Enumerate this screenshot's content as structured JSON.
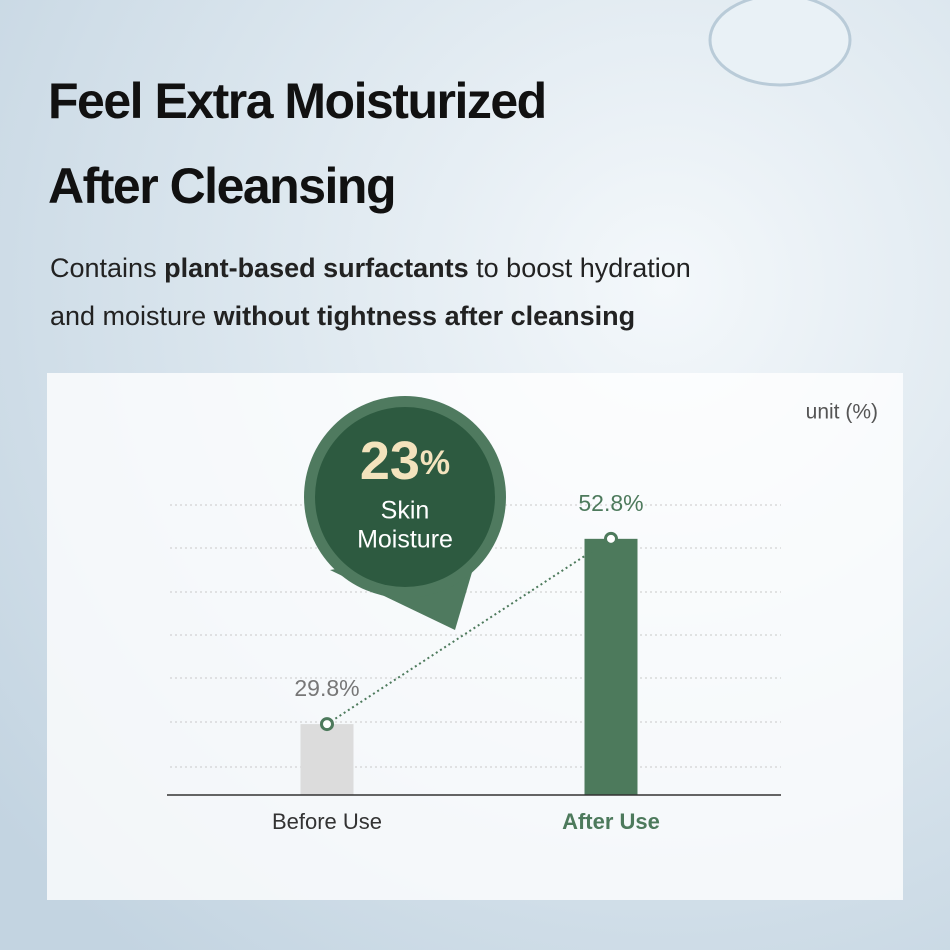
{
  "header": {
    "title": [
      "Feel Extra Moisturized",
      "After Cleansing"
    ],
    "subtitle": [
      [
        {
          "text": "Contains ",
          "bold": false
        },
        {
          "text": "plant-based surfactants",
          "bold": true
        },
        {
          "text": " to boost hydration",
          "bold": false
        }
      ],
      [
        {
          "text": "and moisture ",
          "bold": false
        },
        {
          "text": "without tightness after cleansing",
          "bold": true
        }
      ]
    ]
  },
  "chart_data": {
    "type": "bar",
    "unit_note": "unit (%)",
    "categories": [
      "Before Use",
      "After Use"
    ],
    "values": [
      29.8,
      52.8
    ],
    "value_labels": [
      "29.8%",
      "52.8%"
    ],
    "colors": [
      "#dcdcdc",
      "#4d7a5c"
    ],
    "label_colors": [
      "#333333",
      "#4d7a5c"
    ],
    "ylim": [
      21,
      57
    ],
    "badge": {
      "value": "23",
      "unit": "%",
      "lines": [
        "Skin",
        "Moisture"
      ]
    }
  }
}
